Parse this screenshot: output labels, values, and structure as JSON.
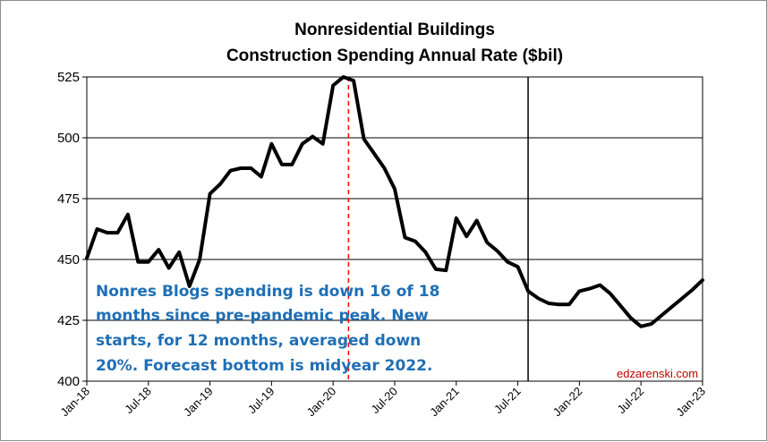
{
  "chart_data": {
    "type": "line",
    "title": [
      "Nonresidential Buildings",
      "Construction Spending Annual Rate ($bil)"
    ],
    "xlabel": "",
    "ylabel": "",
    "ylim": [
      400,
      525
    ],
    "yticks": [
      400,
      425,
      450,
      475,
      500,
      525
    ],
    "grid": true,
    "xtick_labels": [
      {
        "label": "Jan-18",
        "month": 0
      },
      {
        "label": "Jul-18",
        "month": 6
      },
      {
        "label": "Jan-19",
        "month": 12
      },
      {
        "label": "Jul-19",
        "month": 18
      },
      {
        "label": "Jan-20",
        "month": 24
      },
      {
        "label": "Jul-20",
        "month": 30
      },
      {
        "label": "Jan-21",
        "month": 36
      },
      {
        "label": "Jul-21",
        "month": 42
      },
      {
        "label": "Jan-22",
        "month": 48
      },
      {
        "label": "Jul-22",
        "month": 54
      },
      {
        "label": "Jan-23",
        "month": 60
      }
    ],
    "series": [
      {
        "name": "Nonresidential buildings spending",
        "color": "#000000",
        "points": [
          [
            0,
            450.5
          ],
          [
            1,
            462.5
          ],
          [
            2,
            461
          ],
          [
            3,
            461
          ],
          [
            4,
            468.5
          ],
          [
            5,
            449
          ],
          [
            6,
            449
          ],
          [
            7,
            454
          ],
          [
            8,
            446.5
          ],
          [
            9,
            453
          ],
          [
            10,
            439
          ],
          [
            11,
            450
          ],
          [
            12,
            477
          ],
          [
            13,
            481
          ],
          [
            14,
            486.5
          ],
          [
            15,
            487.5
          ],
          [
            16,
            487.5
          ],
          [
            17,
            484
          ],
          [
            18,
            497.5
          ],
          [
            19,
            489
          ],
          [
            20,
            489
          ],
          [
            21,
            497.5
          ],
          [
            22,
            500.5
          ],
          [
            23,
            497.5
          ],
          [
            24,
            521.5
          ],
          [
            25,
            525
          ],
          [
            26,
            523.5
          ],
          [
            27,
            499.5
          ],
          [
            28,
            493.5
          ],
          [
            29,
            487.5
          ],
          [
            30,
            479
          ],
          [
            31,
            459
          ],
          [
            32,
            457.5
          ],
          [
            33,
            453
          ],
          [
            34,
            446
          ],
          [
            35,
            445.5
          ],
          [
            36,
            467
          ],
          [
            37,
            459.5
          ],
          [
            38,
            466
          ],
          [
            39,
            457
          ],
          [
            40,
            453.5
          ],
          [
            41,
            449
          ],
          [
            42,
            447
          ],
          [
            43,
            437
          ],
          [
            44,
            434
          ],
          [
            45,
            432
          ],
          [
            46,
            431.5
          ],
          [
            47,
            431.5
          ],
          [
            48,
            437
          ],
          [
            49,
            438
          ],
          [
            50,
            439.5
          ],
          [
            51,
            436
          ],
          [
            52,
            431
          ],
          [
            53,
            426
          ],
          [
            54,
            422.5
          ],
          [
            55,
            423.5
          ],
          [
            56,
            427
          ],
          [
            57,
            430.5
          ],
          [
            58,
            434
          ],
          [
            59,
            437.5
          ],
          [
            60,
            441.5
          ]
        ]
      }
    ],
    "reference_lines": [
      {
        "name": "pre-pandemic peak marker",
        "month": 25.5,
        "style": "dashed",
        "color": "#ff0000"
      },
      {
        "name": "forecast start marker",
        "month": 43,
        "style": "solid",
        "color": "#000000"
      }
    ],
    "annotations": [
      "Nonres Blogs spending is down 16 of 18",
      "months since pre-pandemic peak. New",
      "starts, for 12 months, averaged down",
      "20%. Forecast bottom is midyear 2022."
    ],
    "credit": "edzarenski.com"
  }
}
